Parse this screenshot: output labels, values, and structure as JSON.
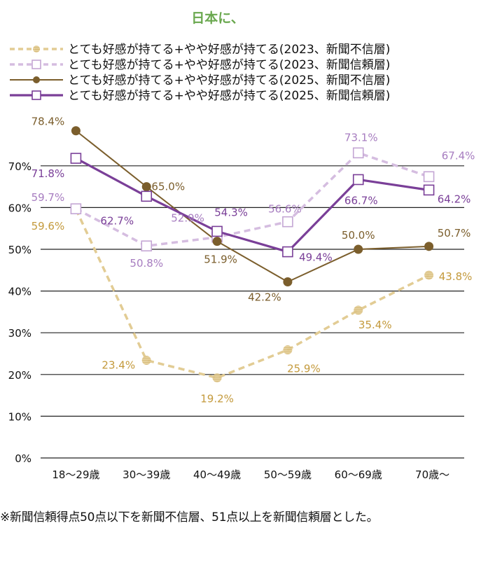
{
  "chart_data": {
    "type": "line",
    "title": "日本に、",
    "xlabel": "",
    "ylabel": "",
    "ylim": [
      0,
      70
    ],
    "yticks": [
      "0%",
      "10%",
      "20%",
      "30%",
      "40%",
      "50%",
      "60%",
      "70%"
    ],
    "grid": true,
    "legend_position": "top",
    "categories": [
      "18～29歳",
      "30～39歳",
      "40～49歳",
      "50～59歳",
      "60～69歳",
      "70歳～"
    ],
    "series": [
      {
        "name": "とても好感が持てる+やや好感が持てる(2023、新聞不信層)",
        "color": "#e2cc94",
        "label_color": "#c49a3c",
        "style": "dashed",
        "marker": "circle-hatched",
        "values": [
          59.6,
          23.4,
          19.2,
          25.9,
          35.4,
          43.8
        ],
        "labels": [
          "59.6%",
          "23.4%",
          "19.2%",
          "25.9%",
          "35.4%",
          "43.8%"
        ]
      },
      {
        "name": "とても好感が持てる+やや好感が持てる(2023、新聞信頼層)",
        "color": "#d5bde0",
        "label_color": "#a77dc0",
        "style": "dashed",
        "marker": "square-open",
        "values": [
          59.7,
          50.8,
          52.9,
          56.6,
          73.1,
          67.4
        ],
        "labels": [
          "59.7%",
          "50.8%",
          "52.9%",
          "56.6%",
          "73.1%",
          "67.4%"
        ]
      },
      {
        "name": "とても好感が持てる+やや好感が持てる(2025、新聞不信層)",
        "color": "#7b5e2c",
        "label_color": "#7b5e2c",
        "style": "solid",
        "marker": "circle-filled",
        "values": [
          78.4,
          65.0,
          51.9,
          42.2,
          50.0,
          50.7
        ],
        "labels": [
          "78.4%",
          "65.0%",
          "51.9%",
          "42.2%",
          "50.0%",
          "50.7%"
        ]
      },
      {
        "name": "とても好感が持てる+やや好感が持てる(2025、新聞信頼層)",
        "color": "#7a3f98",
        "label_color": "#7a3f98",
        "style": "solid-thick",
        "marker": "square-open",
        "values": [
          71.8,
          62.7,
          54.3,
          49.4,
          66.7,
          64.2
        ],
        "labels": [
          "71.8%",
          "62.7%",
          "54.3%",
          "49.4%",
          "66.7%",
          "64.2%"
        ]
      }
    ]
  },
  "footnote": "※新聞信頼得点50点以下を新聞不信層、51点以上を新聞信頼層とした。"
}
